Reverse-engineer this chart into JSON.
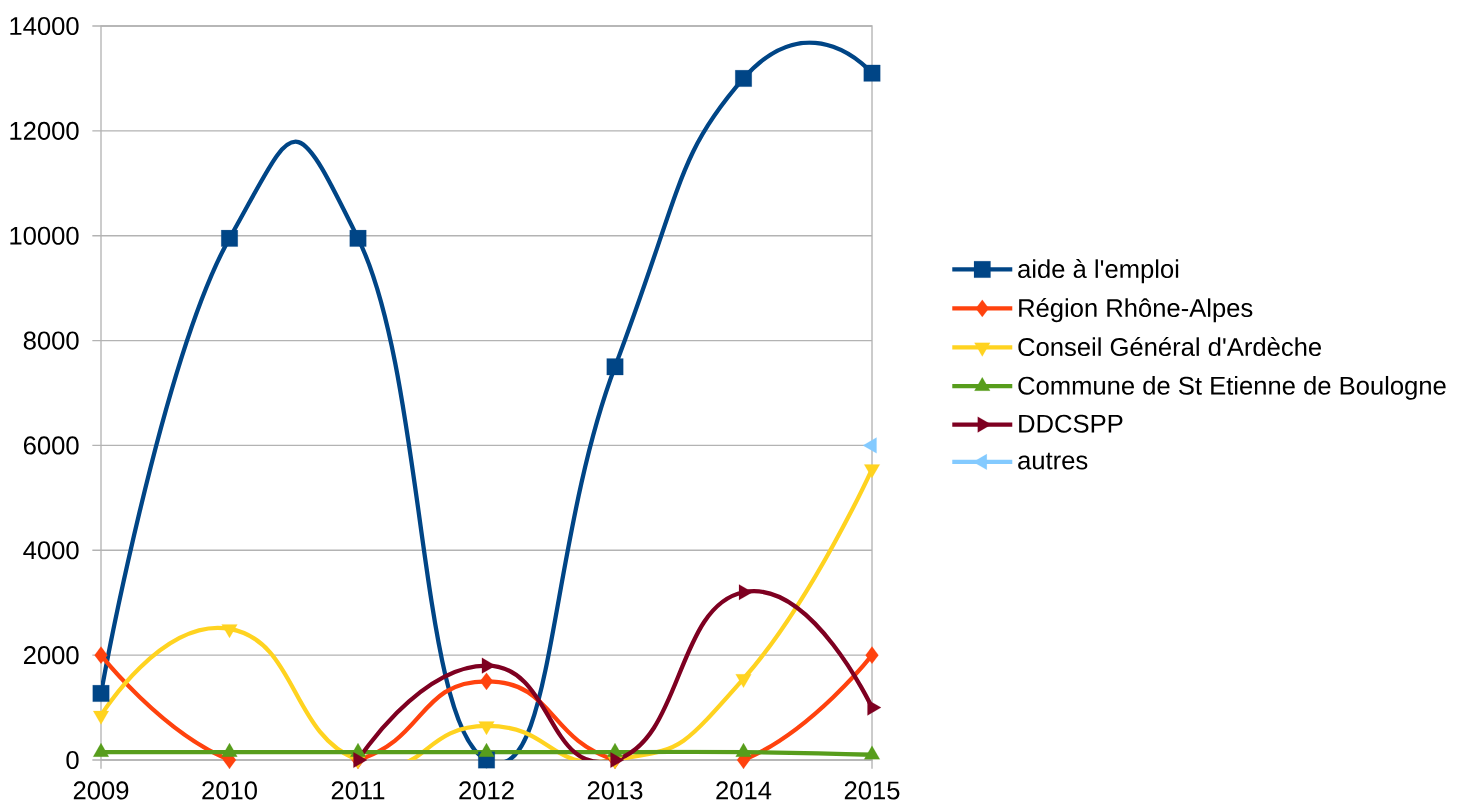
{
  "chart_data": {
    "type": "line",
    "categories": [
      "2009",
      "2010",
      "2011",
      "2012",
      "2013",
      "2014",
      "2015"
    ],
    "series": [
      {
        "name": "aide à l'emploi",
        "color": "#004586",
        "marker": "square",
        "values": [
          1270,
          9950,
          9950,
          0,
          7500,
          13000,
          13100
        ]
      },
      {
        "name": "Région Rhône-Alpes",
        "color": "#ff420e",
        "marker": "diamond",
        "values": [
          2000,
          0,
          0,
          1500,
          0,
          0,
          2000
        ]
      },
      {
        "name": "Conseil Général d'Ardèche",
        "color": "#ffd320",
        "marker": "triangle-down",
        "values": [
          850,
          2500,
          0,
          650,
          0,
          1550,
          5550
        ]
      },
      {
        "name": "Commune de St Etienne de Boulogne",
        "color": "#579d1c",
        "marker": "triangle",
        "values": [
          150,
          150,
          150,
          150,
          150,
          150,
          100
        ]
      },
      {
        "name": "DDCSPP",
        "color": "#7e0021",
        "marker": "triangle-right",
        "values": [
          null,
          null,
          0,
          1800,
          0,
          3200,
          1000
        ]
      },
      {
        "name": "autres",
        "color": "#83caff",
        "marker": "triangle-left",
        "values": [
          null,
          null,
          null,
          null,
          null,
          null,
          6000
        ]
      }
    ],
    "ylim": [
      0,
      14000
    ],
    "yticks": [
      0,
      2000,
      4000,
      6000,
      8000,
      10000,
      12000,
      14000
    ],
    "grid": "y",
    "legend": "right",
    "line_style": "solid"
  }
}
